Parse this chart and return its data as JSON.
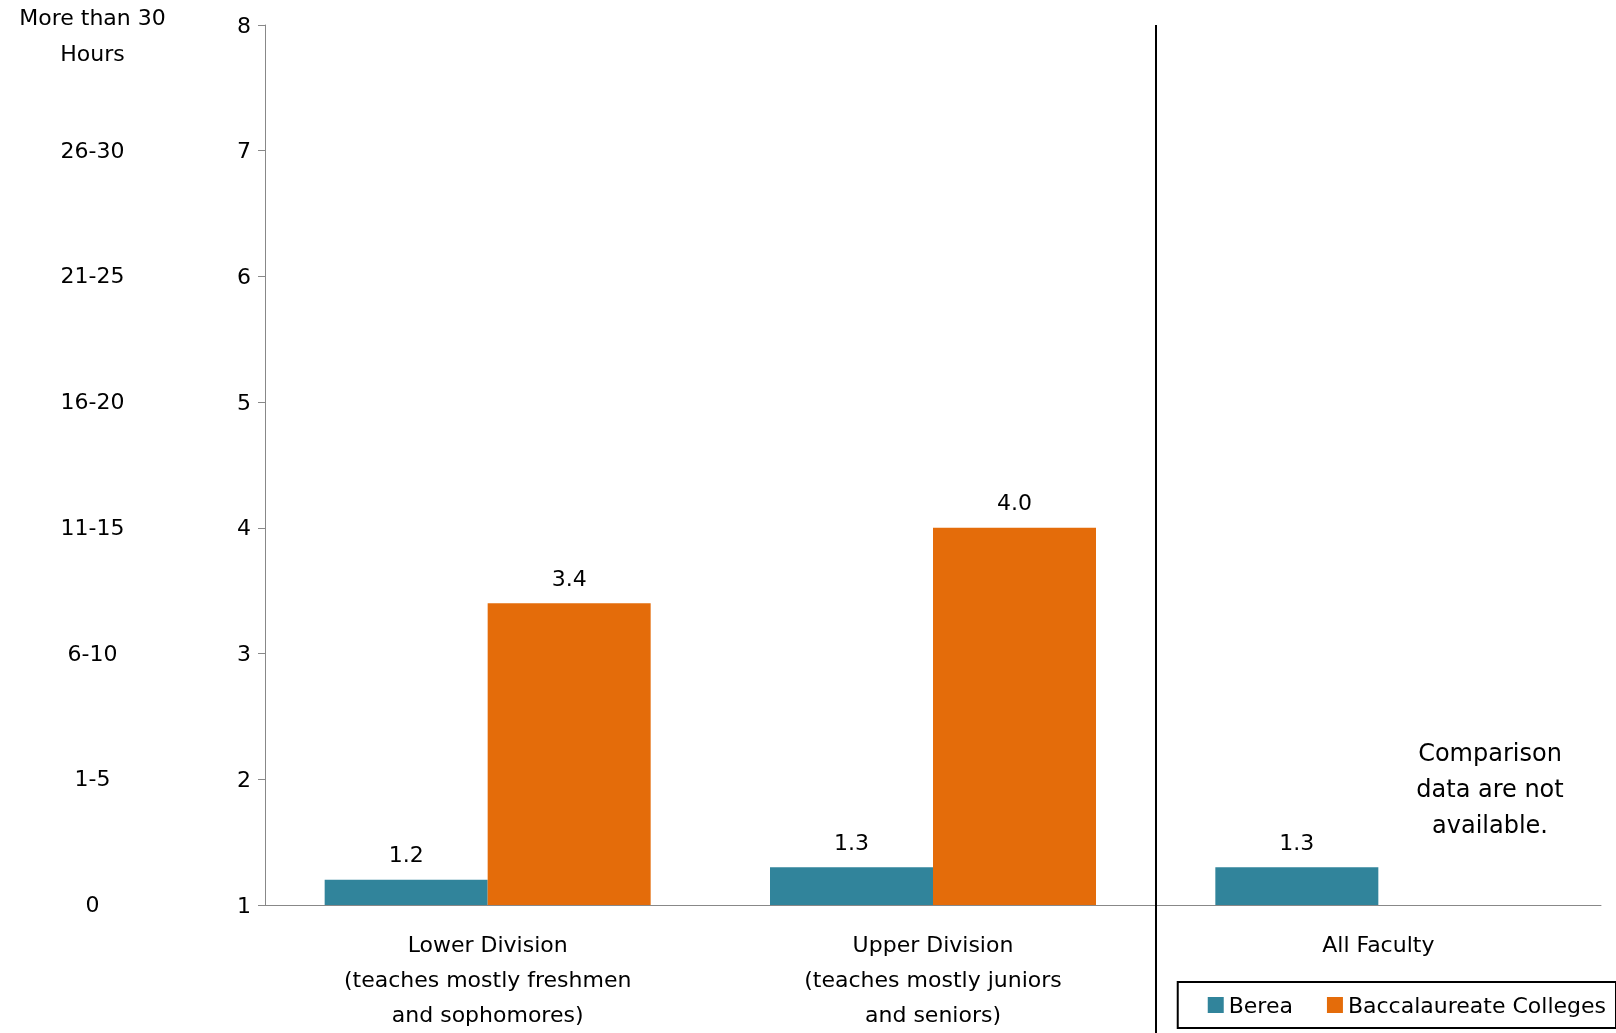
{
  "chart_data": {
    "type": "bar",
    "categories": [
      "Lower Division\n(teaches mostly freshmen\nand sophomores)",
      "Upper Division\n(teaches mostly juniors\nand seniors)",
      "All Faculty"
    ],
    "series": [
      {
        "name": "Berea",
        "color": "#31849b",
        "values": [
          1.2,
          1.3,
          1.3
        ],
        "value_labels": [
          "1.2",
          "1.3",
          "1.3"
        ]
      },
      {
        "name": "Baccalaureate Colleges",
        "color": "#e46c0a",
        "values": [
          3.4,
          4.0,
          null
        ],
        "value_labels": [
          "3.4",
          "4.0",
          null
        ]
      }
    ],
    "ylim": [
      1,
      8
    ],
    "yticks": [
      1,
      2,
      3,
      4,
      5,
      6,
      7,
      8
    ],
    "annotations": [
      "0",
      "1-5",
      "6-10",
      "11-15",
      "16-20",
      "21-25",
      "26-30",
      "More than 30\nHours",
      "Comparison data are not\navailable."
    ],
    "ref_lines": [
      {
        "axis": "x",
        "value": "All Faculty",
        "color": "#000000"
      }
    ],
    "grid": false,
    "legend": "bottom right"
  }
}
